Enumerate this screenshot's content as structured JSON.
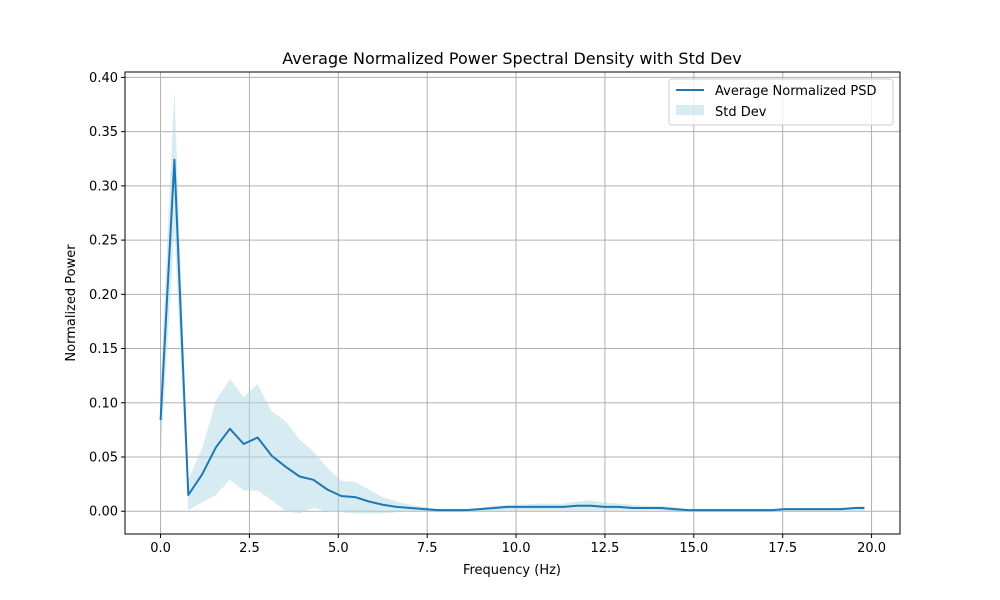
{
  "chart_data": {
    "type": "line",
    "title": "Average Normalized Power Spectral Density with Std Dev",
    "xlabel": "Frequency (Hz)",
    "ylabel": "Normalized Power",
    "xlim": [
      -1.0,
      20.8
    ],
    "ylim": [
      -0.021,
      0.405
    ],
    "x_ticks": [
      0.0,
      2.5,
      5.0,
      7.5,
      10.0,
      12.5,
      15.0,
      17.5,
      20.0
    ],
    "x_tick_labels": [
      "0.0",
      "2.5",
      "5.0",
      "7.5",
      "10.0",
      "12.5",
      "15.0",
      "17.5",
      "20.0"
    ],
    "y_ticks": [
      0.0,
      0.05,
      0.1,
      0.15,
      0.2,
      0.25,
      0.3,
      0.35,
      0.4
    ],
    "y_tick_labels": [
      "0.00",
      "0.05",
      "0.10",
      "0.15",
      "0.20",
      "0.25",
      "0.30",
      "0.35",
      "0.40"
    ],
    "grid": true,
    "legend_position": "top-right",
    "series": [
      {
        "name": "Average Normalized PSD",
        "color": "#1f77b4",
        "x": [
          0.0,
          0.39,
          0.78,
          1.17,
          1.56,
          1.95,
          2.34,
          2.73,
          3.13,
          3.52,
          3.91,
          4.3,
          4.69,
          5.08,
          5.47,
          5.86,
          6.25,
          6.64,
          7.03,
          7.42,
          7.81,
          8.2,
          8.59,
          8.98,
          9.38,
          9.77,
          10.16,
          10.55,
          10.94,
          11.33,
          11.72,
          12.11,
          12.5,
          12.89,
          13.28,
          13.67,
          14.06,
          14.45,
          14.84,
          15.23,
          15.63,
          16.02,
          16.41,
          16.8,
          17.19,
          17.58,
          17.97,
          18.36,
          18.75,
          19.14,
          19.53,
          19.8
        ],
        "y": [
          0.084,
          0.324,
          0.015,
          0.034,
          0.059,
          0.076,
          0.062,
          0.068,
          0.051,
          0.041,
          0.032,
          0.029,
          0.02,
          0.014,
          0.013,
          0.009,
          0.006,
          0.004,
          0.003,
          0.002,
          0.001,
          0.001,
          0.001,
          0.002,
          0.003,
          0.004,
          0.004,
          0.004,
          0.004,
          0.004,
          0.005,
          0.005,
          0.004,
          0.004,
          0.003,
          0.003,
          0.003,
          0.002,
          0.001,
          0.001,
          0.001,
          0.001,
          0.001,
          0.001,
          0.001,
          0.002,
          0.002,
          0.002,
          0.002,
          0.002,
          0.003,
          0.003
        ]
      },
      {
        "name": "Std Dev",
        "color": "#add8e6",
        "lower": [
          0.05,
          0.26,
          0.001,
          0.008,
          0.015,
          0.029,
          0.019,
          0.019,
          0.01,
          0.0,
          -0.002,
          0.003,
          0.0,
          -0.001,
          -0.002,
          -0.002,
          -0.002,
          -0.001,
          0.0,
          0.0,
          0.0,
          0.0,
          0.0,
          0.0,
          0.0,
          0.001,
          0.001,
          0.001,
          0.001,
          0.001,
          0.001,
          0.001,
          0.001,
          0.001,
          0.001,
          0.001,
          0.001,
          0.0,
          0.0,
          0.0,
          0.0,
          0.0,
          0.0,
          0.0,
          0.0,
          0.0,
          0.0,
          0.0,
          0.0,
          0.0,
          0.0,
          0.0
        ],
        "upper": [
          0.118,
          0.388,
          0.029,
          0.058,
          0.102,
          0.122,
          0.105,
          0.117,
          0.092,
          0.083,
          0.066,
          0.055,
          0.04,
          0.028,
          0.027,
          0.02,
          0.013,
          0.009,
          0.006,
          0.004,
          0.002,
          0.002,
          0.002,
          0.003,
          0.005,
          0.006,
          0.006,
          0.007,
          0.007,
          0.007,
          0.009,
          0.01,
          0.008,
          0.007,
          0.006,
          0.005,
          0.005,
          0.004,
          0.002,
          0.002,
          0.002,
          0.002,
          0.002,
          0.002,
          0.002,
          0.003,
          0.003,
          0.003,
          0.003,
          0.003,
          0.004,
          0.005
        ]
      }
    ]
  }
}
